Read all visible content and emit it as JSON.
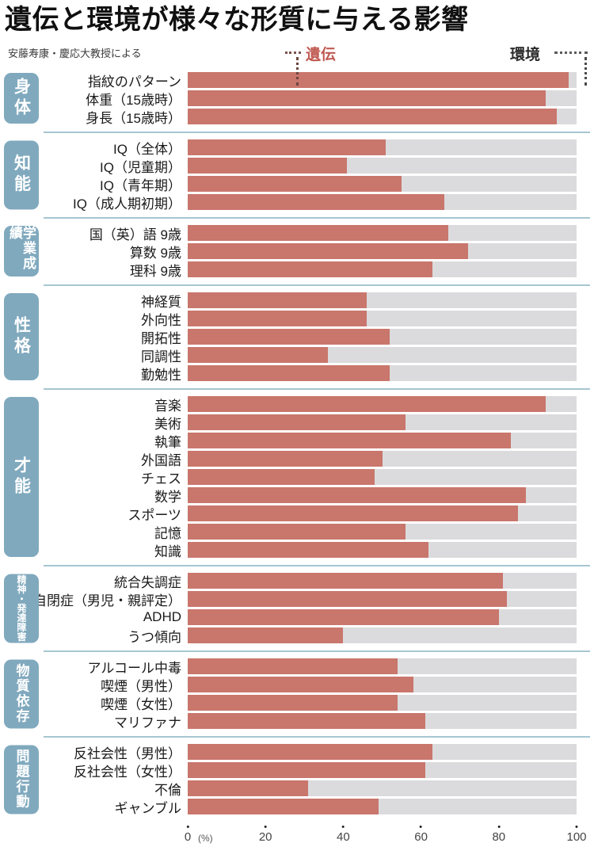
{
  "header": {
    "title": "遺伝と環境が様々な形質に与える影響",
    "source": "安藤寿康・慶応大教授による"
  },
  "legend": {
    "heredity": "遺伝",
    "environment": "環境"
  },
  "axis": {
    "ticks": [
      0,
      20,
      40,
      60,
      80,
      100
    ],
    "unit": "(%)"
  },
  "colors": {
    "heredity_bar": "#c9766c",
    "environment_bar": "#dbdbdd",
    "category_box": "#80a9be",
    "heredity_label": "#c05a52",
    "environment_label": "#2b2b2b",
    "section_divider": "#a6c6d2"
  },
  "chart_data": {
    "type": "bar",
    "orientation": "horizontal",
    "stacked_series": [
      "遺伝",
      "環境"
    ],
    "title": "遺伝と環境が様々な形質に与える影響",
    "xlabel": "(%)",
    "xlim": [
      0,
      100
    ],
    "note": "values are heredity (遺伝) percentage; environment (環境) fills remainder to 100%",
    "sections": [
      {
        "category": "身体",
        "rows": [
          {
            "label": "指紋のパターン",
            "value": 98
          },
          {
            "label": "体重（15歳時）",
            "value": 92
          },
          {
            "label": "身長（15歳時）",
            "value": 95
          }
        ]
      },
      {
        "category": "知能",
        "rows": [
          {
            "label": "IQ（全体）",
            "value": 51
          },
          {
            "label": "IQ（児童期）",
            "value": 41
          },
          {
            "label": "IQ（青年期）",
            "value": 55
          },
          {
            "label": "IQ（成人期初期）",
            "value": 66
          }
        ]
      },
      {
        "category": "学業成績",
        "rows": [
          {
            "label": "国（英）語 9歳",
            "value": 67
          },
          {
            "label": "算数 9歳",
            "value": 72
          },
          {
            "label": "理科 9歳",
            "value": 63
          }
        ]
      },
      {
        "category": "性格",
        "rows": [
          {
            "label": "神経質",
            "value": 46
          },
          {
            "label": "外向性",
            "value": 46
          },
          {
            "label": "開拓性",
            "value": 52
          },
          {
            "label": "同調性",
            "value": 36
          },
          {
            "label": "勤勉性",
            "value": 52
          }
        ]
      },
      {
        "category": "才能",
        "rows": [
          {
            "label": "音楽",
            "value": 92
          },
          {
            "label": "美術",
            "value": 56
          },
          {
            "label": "執筆",
            "value": 83
          },
          {
            "label": "外国語",
            "value": 50
          },
          {
            "label": "チェス",
            "value": 48
          },
          {
            "label": "数学",
            "value": 87
          },
          {
            "label": "スポーツ",
            "value": 85
          },
          {
            "label": "記憶",
            "value": 56
          },
          {
            "label": "知識",
            "value": 62
          }
        ]
      },
      {
        "category": "精神・発達障害",
        "rows": [
          {
            "label": "統合失調症",
            "value": 81
          },
          {
            "label": "自閉症（男児・親評定）",
            "value": 82
          },
          {
            "label": "ADHD",
            "value": 80
          },
          {
            "label": "うつ傾向",
            "value": 40
          }
        ]
      },
      {
        "category": "物質依存",
        "rows": [
          {
            "label": "アルコール中毒",
            "value": 54
          },
          {
            "label": "喫煙（男性）",
            "value": 58
          },
          {
            "label": "喫煙（女性）",
            "value": 54
          },
          {
            "label": "マリファナ",
            "value": 61
          }
        ]
      },
      {
        "category": "問題行動",
        "rows": [
          {
            "label": "反社会性（男性）",
            "value": 63
          },
          {
            "label": "反社会性（女性）",
            "value": 61
          },
          {
            "label": "不倫",
            "value": 31
          },
          {
            "label": "ギャンブル",
            "value": 49
          }
        ]
      }
    ]
  }
}
